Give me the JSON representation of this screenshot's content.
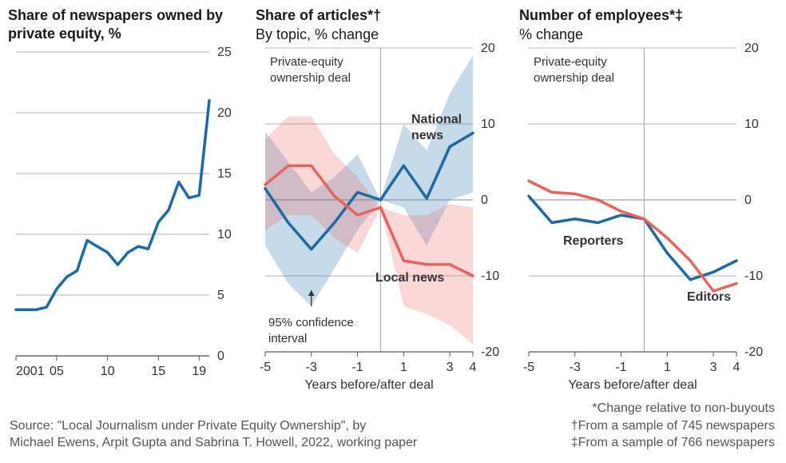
{
  "colors": {
    "blue": "#1d6aa3",
    "red": "#e6645e",
    "blue_fill": "rgba(29,106,163,0.25)",
    "red_fill": "rgba(230,100,94,0.25)",
    "grid": "#b0b0b0",
    "zero": "#a8a8a8",
    "axis_text": "#333333",
    "title_text": "#1a1a1a",
    "foot_text": "#555555",
    "background": "#ffffff"
  },
  "panel1": {
    "title": "Share of newspapers owned by private equity, %",
    "subtitle": "",
    "chart": {
      "type": "line",
      "x_ticks": [
        2001,
        2005,
        2010,
        2015,
        2019
      ],
      "x_tick_labels": [
        "2001",
        "05",
        "10",
        "15",
        "19"
      ],
      "y_ticks": [
        0,
        5,
        10,
        15,
        20,
        25
      ],
      "xlim": [
        2001,
        2020
      ],
      "ylim": [
        0,
        25
      ],
      "series": [
        {
          "name": "share",
          "color": "#1d6aa3",
          "stroke_width": 3.5,
          "x": [
            2001,
            2002,
            2003,
            2004,
            2005,
            2006,
            2007,
            2008,
            2009,
            2010,
            2011,
            2012,
            2013,
            2014,
            2015,
            2016,
            2017,
            2018,
            2019,
            2020
          ],
          "y": [
            3.8,
            3.8,
            3.8,
            4.0,
            5.5,
            6.5,
            7.0,
            9.5,
            9.0,
            8.5,
            7.5,
            8.5,
            9.0,
            8.8,
            11.0,
            12.0,
            14.3,
            13.0,
            13.2,
            21.0
          ]
        }
      ]
    }
  },
  "panel2": {
    "title": "Share of articles*†",
    "subtitle": "By topic, % change",
    "annotation_deal": "Private-equity ownership deal",
    "annotation_ci": "95% confidence interval",
    "label_national": "National news",
    "label_local": "Local news",
    "x_axis_label": "Years before/after deal",
    "chart": {
      "type": "line_ci",
      "x_ticks": [
        -5,
        -3,
        -1,
        1,
        3,
        4
      ],
      "x_tick_labels": [
        "-5",
        "-3",
        "-1",
        "1",
        "3",
        "4"
      ],
      "y_ticks": [
        -20,
        -10,
        0,
        10,
        20
      ],
      "xlim": [
        -5,
        4
      ],
      "ylim": [
        -20,
        20
      ],
      "series": [
        {
          "name": "national",
          "color": "#1d6aa3",
          "stroke_width": 3.5,
          "x": [
            -5,
            -4,
            -3,
            -2,
            -1,
            0,
            1,
            2,
            3,
            4
          ],
          "y": [
            1.5,
            -3,
            -6.5,
            -3,
            1,
            0,
            4.5,
            0.2,
            7,
            8.8
          ],
          "ci_low": [
            -6,
            -11,
            -14,
            -9,
            -4,
            0,
            -1,
            -6,
            0,
            1
          ],
          "ci_high": [
            9,
            5,
            1,
            3,
            6,
            0,
            10,
            6.5,
            14,
            19
          ]
        },
        {
          "name": "local",
          "color": "#e6645e",
          "stroke_width": 3.5,
          "x": [
            -5,
            -4,
            -3,
            -2,
            -1,
            0,
            1,
            2,
            3,
            4
          ],
          "y": [
            2,
            4.5,
            4.5,
            0.5,
            -2,
            -1,
            -8,
            -8.5,
            -8.5,
            -10
          ],
          "ci_low": [
            -4,
            -2,
            -2,
            -5,
            -7,
            -1,
            -14,
            -15,
            -16.5,
            -19
          ],
          "ci_high": [
            8,
            11,
            11,
            6,
            3,
            -1,
            -2,
            -2,
            -0.5,
            -1
          ]
        }
      ]
    }
  },
  "panel3": {
    "title": "Number of employees*‡",
    "subtitle": "% change",
    "annotation_deal": "Private-equity ownership deal",
    "label_reporters": "Reporters",
    "label_editors": "Editors",
    "x_axis_label": "Years before/after deal",
    "chart": {
      "type": "line",
      "x_ticks": [
        -5,
        -3,
        -1,
        1,
        3,
        4
      ],
      "x_tick_labels": [
        "-5",
        "-3",
        "-1",
        "1",
        "3",
        "4"
      ],
      "y_ticks": [
        -20,
        -10,
        0,
        10,
        20
      ],
      "xlim": [
        -5,
        4
      ],
      "ylim": [
        -20,
        20
      ],
      "series": [
        {
          "name": "reporters",
          "color": "#1d6aa3",
          "stroke_width": 3.5,
          "x": [
            -5,
            -4,
            -3,
            -2,
            -1,
            0,
            1,
            2,
            3,
            4
          ],
          "y": [
            0.5,
            -3,
            -2.5,
            -3,
            -2,
            -2.5,
            -7,
            -10.5,
            -9.5,
            -8
          ]
        },
        {
          "name": "editors",
          "color": "#e6645e",
          "stroke_width": 3.5,
          "x": [
            -5,
            -4,
            -3,
            -2,
            -1,
            0,
            1,
            2,
            3,
            4
          ],
          "y": [
            2.5,
            1,
            0.8,
            0,
            -1.5,
            -2.5,
            -5,
            -8,
            -12,
            -11
          ]
        }
      ]
    }
  },
  "footnotes_left_line1": "Source: \"Local Journalism under Private Equity Ownership\", by",
  "footnotes_left_line2": "Michael Ewens, Arpit Gupta and Sabrina T. Howell, 2022, working paper",
  "footnotes_right_line1": "*Change relative to non-buyouts",
  "footnotes_right_line2": "†From a sample of 745 newspapers",
  "footnotes_right_line3": "‡From a sample of 766 newspapers"
}
